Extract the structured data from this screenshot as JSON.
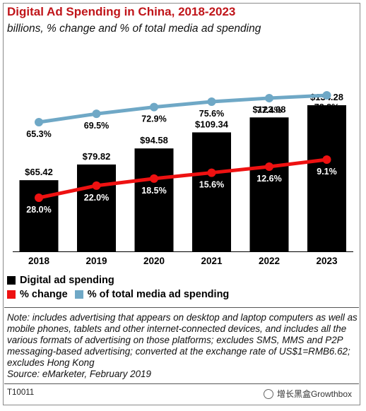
{
  "header": {
    "title": "Digital Ad Spending in China, 2018-2023",
    "subtitle": "billions, % change and % of total media ad spending"
  },
  "chart_data": {
    "type": "bar",
    "categories": [
      "2018",
      "2019",
      "2020",
      "2021",
      "2022",
      "2023"
    ],
    "series": [
      {
        "name": "Digital ad spending",
        "kind": "bar",
        "values": [
          65.42,
          79.82,
          94.58,
          109.34,
          123.08,
          134.28
        ],
        "labels": [
          "$65.42",
          "$79.82",
          "$94.58",
          "$109.34",
          "$123.08",
          "$134.28"
        ],
        "color": "#000000"
      },
      {
        "name": "% change",
        "kind": "line",
        "values": [
          28.0,
          22.0,
          18.5,
          15.6,
          12.6,
          9.1
        ],
        "labels": [
          "28.0%",
          "22.0%",
          "18.5%",
          "15.6%",
          "12.6%",
          "9.1%"
        ],
        "color": "#ee1111"
      },
      {
        "name": "% of total media ad spending",
        "kind": "line",
        "values": [
          65.3,
          69.5,
          72.9,
          75.6,
          77.4,
          78.8
        ],
        "labels": [
          "65.3%",
          "69.5%",
          "72.9%",
          "75.6%",
          "77.4%",
          "78.8%"
        ],
        "color": "#6fa8c6"
      }
    ],
    "legend_position": "bottom-left",
    "grid": false
  },
  "legend": {
    "bar_label": "Digital ad spending",
    "change_label": "% change",
    "share_label": "% of total media ad spending"
  },
  "footer": {
    "note": "Note: includes advertising that appears on desktop and laptop computers as well as mobile phones, tablets and other internet-connected devices, and includes all the various formats of advertising on those platforms; excludes SMS, MMS and P2P messaging-based advertising; converted at the exchange rate of US$1=RMB6.62; excludes Hong Kong",
    "source": "Source: eMarketer, February 2019",
    "code": "T10011",
    "watermark": "增长黑盒Growthbox"
  }
}
